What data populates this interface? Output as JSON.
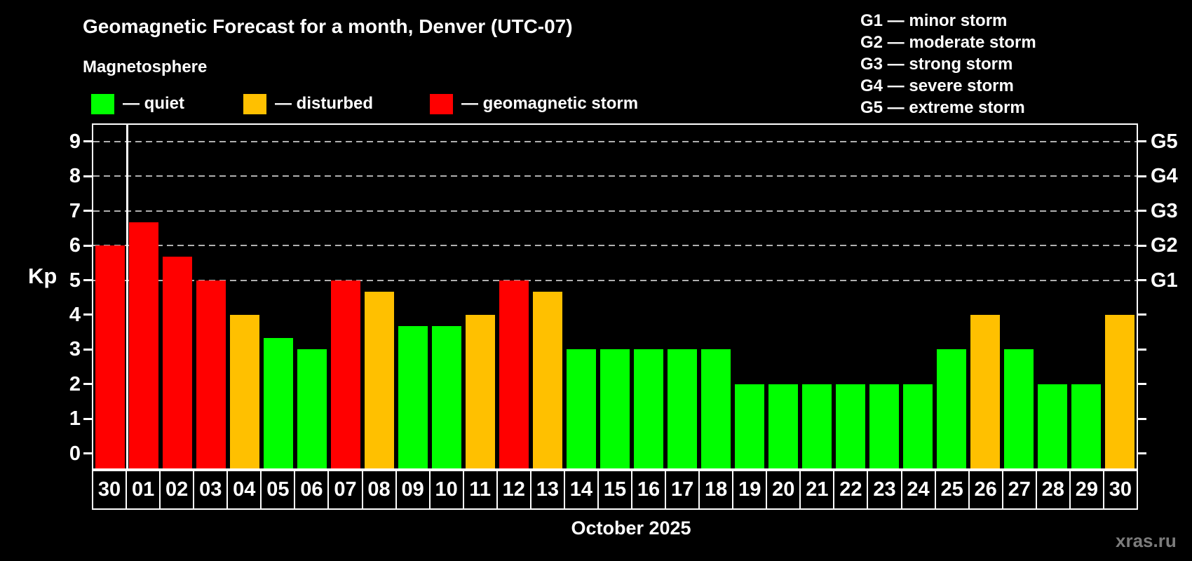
{
  "title": "Geomagnetic Forecast for a month, Denver (UTC-07)",
  "subtitle": "Magnetosphere",
  "legend": {
    "items": [
      {
        "name": "quiet",
        "label": "— quiet",
        "color": "#00ff00"
      },
      {
        "name": "disturbed",
        "label": "— disturbed",
        "color": "#ffc000"
      },
      {
        "name": "storm",
        "label": "— geomagnetic storm",
        "color": "#ff0000"
      }
    ]
  },
  "storm_scale": [
    "G1 — minor storm",
    "G2 — moderate storm",
    "G3 — strong storm",
    "G4 — severe storm",
    "G5 — extreme storm"
  ],
  "watermark": "xras.ru",
  "chart_data": {
    "type": "bar",
    "title": "Geomagnetic Forecast for a month, Denver (UTC-07)",
    "subtitle": "Magnetosphere",
    "xlabel": "October 2025",
    "ylabel": "Kp",
    "ylim": [
      0,
      9.5
    ],
    "yticks": [
      0,
      1,
      2,
      3,
      4,
      5,
      6,
      7,
      8,
      9
    ],
    "grid_levels": [
      5,
      6,
      7,
      8,
      9
    ],
    "grid_style": "dashed",
    "right_axis_labels": [
      {
        "level": 5,
        "label": "G1"
      },
      {
        "level": 6,
        "label": "G2"
      },
      {
        "level": 7,
        "label": "G3"
      },
      {
        "level": 8,
        "label": "G4"
      },
      {
        "level": 9,
        "label": "G5"
      }
    ],
    "categories": [
      "30",
      "01",
      "02",
      "03",
      "04",
      "05",
      "06",
      "07",
      "08",
      "09",
      "10",
      "11",
      "12",
      "13",
      "14",
      "15",
      "16",
      "17",
      "18",
      "19",
      "20",
      "21",
      "22",
      "23",
      "24",
      "25",
      "26",
      "27",
      "28",
      "29",
      "30"
    ],
    "values": [
      6.0,
      6.67,
      5.67,
      5.0,
      4.0,
      3.33,
      3.0,
      5.0,
      4.67,
      3.67,
      3.67,
      4.0,
      5.0,
      4.67,
      3.0,
      3.0,
      3.0,
      3.0,
      3.0,
      2.0,
      2.0,
      2.0,
      2.0,
      2.0,
      2.0,
      3.0,
      4.0,
      3.0,
      2.0,
      2.0,
      4.0
    ],
    "statuses": [
      "storm",
      "storm",
      "storm",
      "storm",
      "disturbed",
      "quiet",
      "quiet",
      "storm",
      "disturbed",
      "quiet",
      "quiet",
      "disturbed",
      "storm",
      "disturbed",
      "quiet",
      "quiet",
      "quiet",
      "quiet",
      "quiet",
      "quiet",
      "quiet",
      "quiet",
      "quiet",
      "quiet",
      "quiet",
      "quiet",
      "disturbed",
      "quiet",
      "quiet",
      "quiet",
      "disturbed"
    ],
    "status_colors": {
      "quiet": "#00ff00",
      "disturbed": "#ffc000",
      "storm": "#ff0000"
    },
    "separator_after_index": 0,
    "legend_position": "top-left",
    "background": "#000000"
  }
}
